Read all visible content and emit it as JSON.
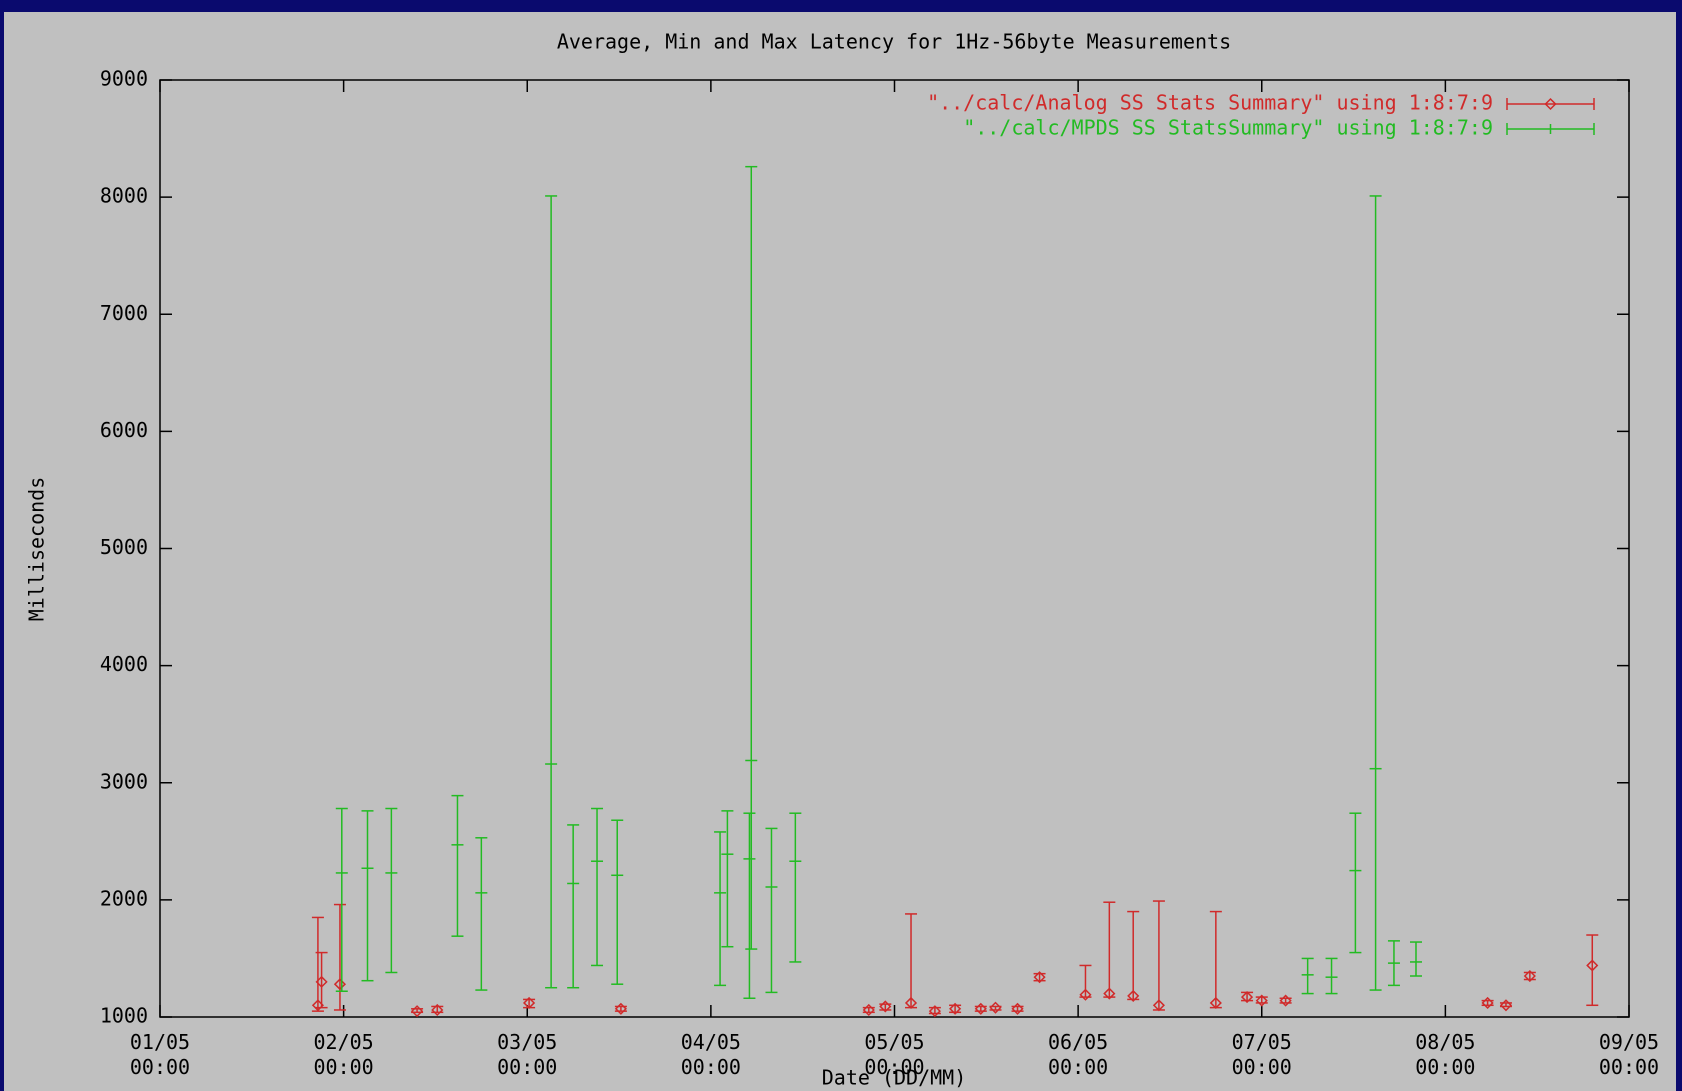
{
  "chart_data": {
    "type": "errorbar",
    "title": "Average, Min and Max Latency for 1Hz-56byte Measurements",
    "x_label": "Date (DD/MM)",
    "y_label": "Milliseconds",
    "xlim": [
      1,
      9
    ],
    "xticks": [
      {
        "value": 1,
        "label": "01/05 00:00"
      },
      {
        "value": 2,
        "label": "02/05 00:00"
      },
      {
        "value": 3,
        "label": "03/05 00:00"
      },
      {
        "value": 4,
        "label": "04/05 00:00"
      },
      {
        "value": 5,
        "label": "05/05 00:00"
      },
      {
        "value": 6,
        "label": "06/05 00:00"
      },
      {
        "value": 7,
        "label": "07/05 00:00"
      },
      {
        "value": 8,
        "label": "08/05 00:00"
      },
      {
        "value": 9,
        "label": "09/05 00:00"
      }
    ],
    "ylim": [
      1000,
      9000
    ],
    "yticks": [
      1000,
      2000,
      3000,
      4000,
      5000,
      6000,
      7000,
      8000,
      9000
    ],
    "legend": "top-right",
    "series": [
      {
        "name": "\"../calc/Analog SS Stats Summary\" using 1:8:7:9",
        "color": "#d02a2a",
        "marker": "diamond",
        "x": [
          1.86,
          1.88,
          1.98,
          2.4,
          2.51,
          3.01,
          3.51,
          4.86,
          4.95,
          5.09,
          5.22,
          5.33,
          5.47,
          5.55,
          5.67,
          5.79,
          6.04,
          6.17,
          6.3,
          6.44,
          6.75,
          6.92,
          7.0,
          7.13,
          8.23,
          8.33,
          8.46,
          8.8
        ],
        "values": [
          1100,
          1300,
          1280,
          1050,
          1060,
          1120,
          1070,
          1060,
          1090,
          1120,
          1050,
          1070,
          1070,
          1080,
          1070,
          1340,
          1190,
          1200,
          1180,
          1100,
          1120,
          1170,
          1140,
          1140,
          1120,
          1100,
          1350,
          1440
        ],
        "min": [
          1050,
          1080,
          1060,
          1040,
          1040,
          1080,
          1050,
          1040,
          1060,
          1080,
          1030,
          1040,
          1050,
          1060,
          1050,
          1310,
          1170,
          1170,
          1150,
          1060,
          1080,
          1140,
          1120,
          1120,
          1100,
          1090,
          1320,
          1100
        ],
        "max": [
          1850,
          1550,
          1960,
          1070,
          1090,
          1150,
          1090,
          1080,
          1110,
          1880,
          1080,
          1100,
          1090,
          1090,
          1090,
          1370,
          1440,
          1980,
          1900,
          1990,
          1900,
          1210,
          1170,
          1160,
          1140,
          1120,
          1380,
          1700
        ]
      },
      {
        "name": "\"../calc/MPDS SS StatsSummary\" using 1:8:7:9",
        "color": "#22bb22",
        "marker": "tick",
        "x": [
          1.99,
          2.13,
          2.26,
          2.62,
          2.75,
          3.13,
          3.25,
          3.38,
          3.49,
          4.05,
          4.09,
          4.21,
          4.22,
          4.33,
          4.46,
          7.25,
          7.38,
          7.51,
          7.62,
          7.72,
          7.84
        ],
        "values": [
          2230,
          2270,
          2230,
          2470,
          2060,
          3160,
          2140,
          2330,
          2210,
          2060,
          2390,
          2350,
          3190,
          2110,
          2330,
          1360,
          1340,
          2250,
          3120,
          1460,
          1470
        ],
        "min": [
          1220,
          1310,
          1380,
          1690,
          1230,
          1250,
          1250,
          1440,
          1280,
          1270,
          1600,
          1160,
          1580,
          1210,
          1470,
          1200,
          1200,
          1550,
          1230,
          1270,
          1350
        ],
        "max": [
          2780,
          2760,
          2780,
          2890,
          2530,
          8010,
          2640,
          2780,
          2680,
          2580,
          2760,
          2740,
          8260,
          2610,
          2740,
          1500,
          1500,
          2740,
          8010,
          1650,
          1640
        ]
      }
    ]
  }
}
